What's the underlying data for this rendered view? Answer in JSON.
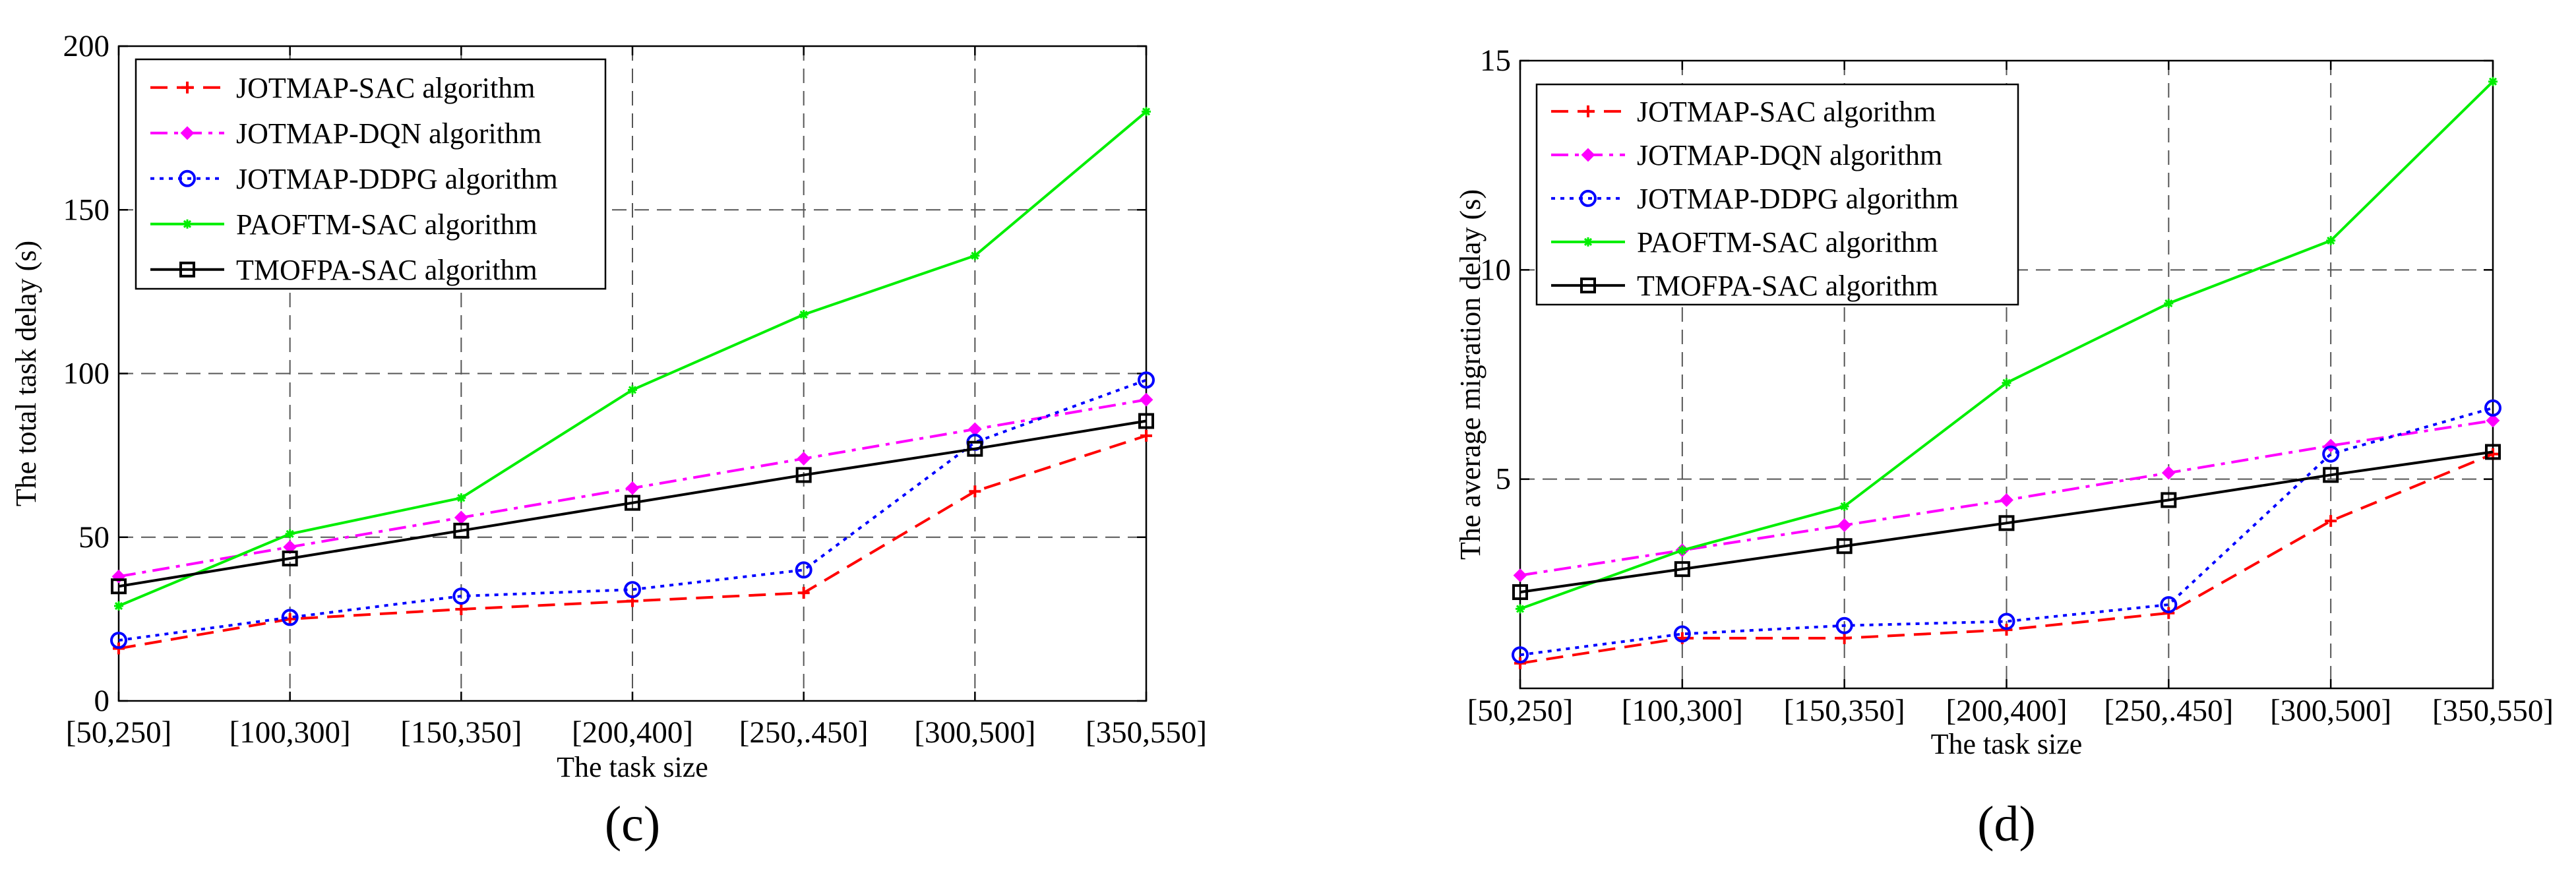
{
  "chart_data": [
    {
      "type": "line",
      "panel_label": "(c)",
      "title": "",
      "xlabel": "The task size",
      "ylabel": "The total task delay (s)",
      "categories": [
        "[50,250]",
        "[100,300]",
        "[150,350]",
        "[200,400]",
        "[250,.450]",
        "[300,500]",
        "[350,550]"
      ],
      "ylim": [
        0,
        200
      ],
      "yticks": [
        0,
        50,
        100,
        150,
        200
      ],
      "grid": true,
      "legend_position": "top-left",
      "series": [
        {
          "name": "JOTMAP-SAC algorithm",
          "color": "#ff0000",
          "line_style": "dashed",
          "marker": "plus",
          "values": [
            16,
            25,
            28,
            30.5,
            33,
            64,
            81
          ]
        },
        {
          "name": "JOTMAP-DQN algorithm",
          "color": "#ff00ff",
          "line_style": "dashdot",
          "marker": "diamond",
          "values": [
            38,
            47,
            56,
            65,
            74,
            83,
            92
          ]
        },
        {
          "name": "JOTMAP-DDPG algorithm",
          "color": "#0000ff",
          "line_style": "dotted",
          "marker": "circle",
          "values": [
            18.5,
            25.5,
            32,
            34,
            40,
            79,
            98
          ]
        },
        {
          "name": "PAOFTM-SAC algorithm",
          "color": "#00ee00",
          "line_style": "solid",
          "marker": "star",
          "values": [
            29,
            51,
            62,
            95,
            118,
            136,
            180
          ]
        },
        {
          "name": "TMOFPA-SAC algorithm",
          "color": "#000000",
          "line_style": "solid",
          "marker": "square",
          "values": [
            35,
            43.5,
            52,
            60.5,
            69,
            77,
            85.5
          ]
        }
      ]
    },
    {
      "type": "line",
      "panel_label": "(d)",
      "title": "",
      "xlabel": "The task size",
      "ylabel": "The average migration delay (s)",
      "categories": [
        "[50,250]",
        "[100,300]",
        "[150,350]",
        "[200,400]",
        "[250,.450]",
        "[300,500]",
        "[350,550]"
      ],
      "ylim": [
        0,
        15
      ],
      "yticks": [
        5,
        10,
        15
      ],
      "grid": true,
      "legend_position": "top-left",
      "series": [
        {
          "name": "JOTMAP-SAC algorithm",
          "color": "#ff0000",
          "line_style": "dashed",
          "marker": "plus",
          "values": [
            0.6,
            1.2,
            1.2,
            1.4,
            1.8,
            4.0,
            5.6
          ]
        },
        {
          "name": "JOTMAP-DQN algorithm",
          "color": "#ff00ff",
          "line_style": "dashdot",
          "marker": "diamond",
          "values": [
            2.7,
            3.3,
            3.9,
            4.5,
            5.15,
            5.8,
            6.4
          ]
        },
        {
          "name": "JOTMAP-DDPG algorithm",
          "color": "#0000ff",
          "line_style": "dotted",
          "marker": "circle",
          "values": [
            0.8,
            1.3,
            1.5,
            1.6,
            2.0,
            5.6,
            6.7
          ]
        },
        {
          "name": "PAOFTM-SAC algorithm",
          "color": "#00ee00",
          "line_style": "solid",
          "marker": "star",
          "values": [
            1.9,
            3.3,
            4.35,
            7.3,
            9.2,
            10.7,
            14.5
          ]
        },
        {
          "name": "TMOFPA-SAC algorithm",
          "color": "#000000",
          "line_style": "solid",
          "marker": "square",
          "values": [
            2.3,
            2.85,
            3.4,
            3.95,
            4.5,
            5.1,
            5.65
          ]
        }
      ]
    }
  ]
}
